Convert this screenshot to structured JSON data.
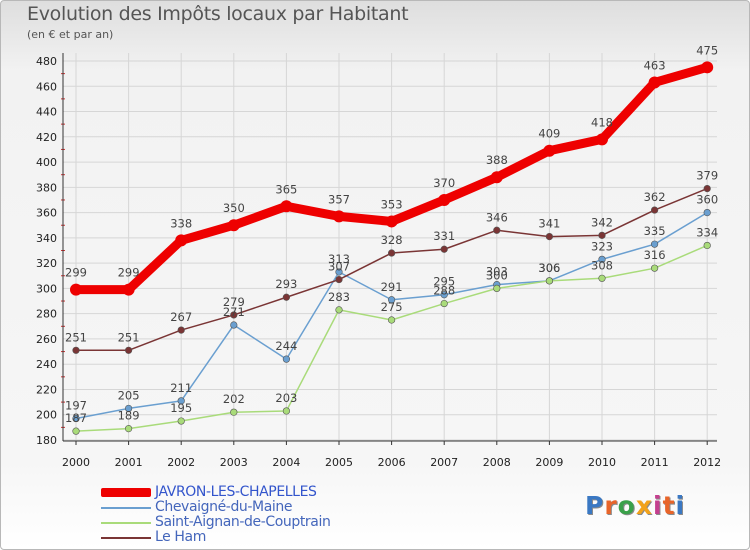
{
  "header": {
    "title": "Evolution des Impôts locaux par Habitant",
    "subtitle": "(en € et par an)"
  },
  "logo": {
    "text": "Proxiti",
    "colors": [
      "#3a78c3",
      "#e8652a",
      "#3aa14a",
      "#f2a21a",
      "#c43f8e",
      "#e8652a",
      "#3a78c3"
    ]
  },
  "chart_data": {
    "type": "line",
    "x": [
      2000,
      2001,
      2002,
      2003,
      2004,
      2005,
      2006,
      2007,
      2008,
      2009,
      2010,
      2011,
      2012
    ],
    "ylim": [
      180,
      480
    ],
    "yticks": [
      180,
      200,
      220,
      240,
      260,
      280,
      300,
      320,
      340,
      360,
      380,
      400,
      420,
      440,
      460,
      480
    ],
    "grid": true,
    "legend_position": "bottom-left",
    "series": [
      {
        "name": "JAVRON-LES-CHAPELLES",
        "color": "#ee0000",
        "highlight": true,
        "values": [
          299,
          299,
          338,
          350,
          365,
          357,
          353,
          370,
          388,
          409,
          418,
          463,
          475
        ]
      },
      {
        "name": "Chevaigné-du-Maine",
        "color": "#6a9fd0",
        "values": [
          197,
          205,
          211,
          271,
          244,
          313,
          291,
          295,
          303,
          306,
          323,
          335,
          360
        ]
      },
      {
        "name": "Saint-Aignan-de-Couptrain",
        "color": "#a9db7a",
        "values": [
          187,
          189,
          195,
          202,
          203,
          283,
          275,
          288,
          300,
          306,
          308,
          316,
          334
        ]
      },
      {
        "name": "Le Ham",
        "color": "#7a3535",
        "values": [
          251,
          251,
          267,
          279,
          293,
          307,
          328,
          331,
          346,
          341,
          342,
          362,
          379
        ]
      }
    ]
  }
}
